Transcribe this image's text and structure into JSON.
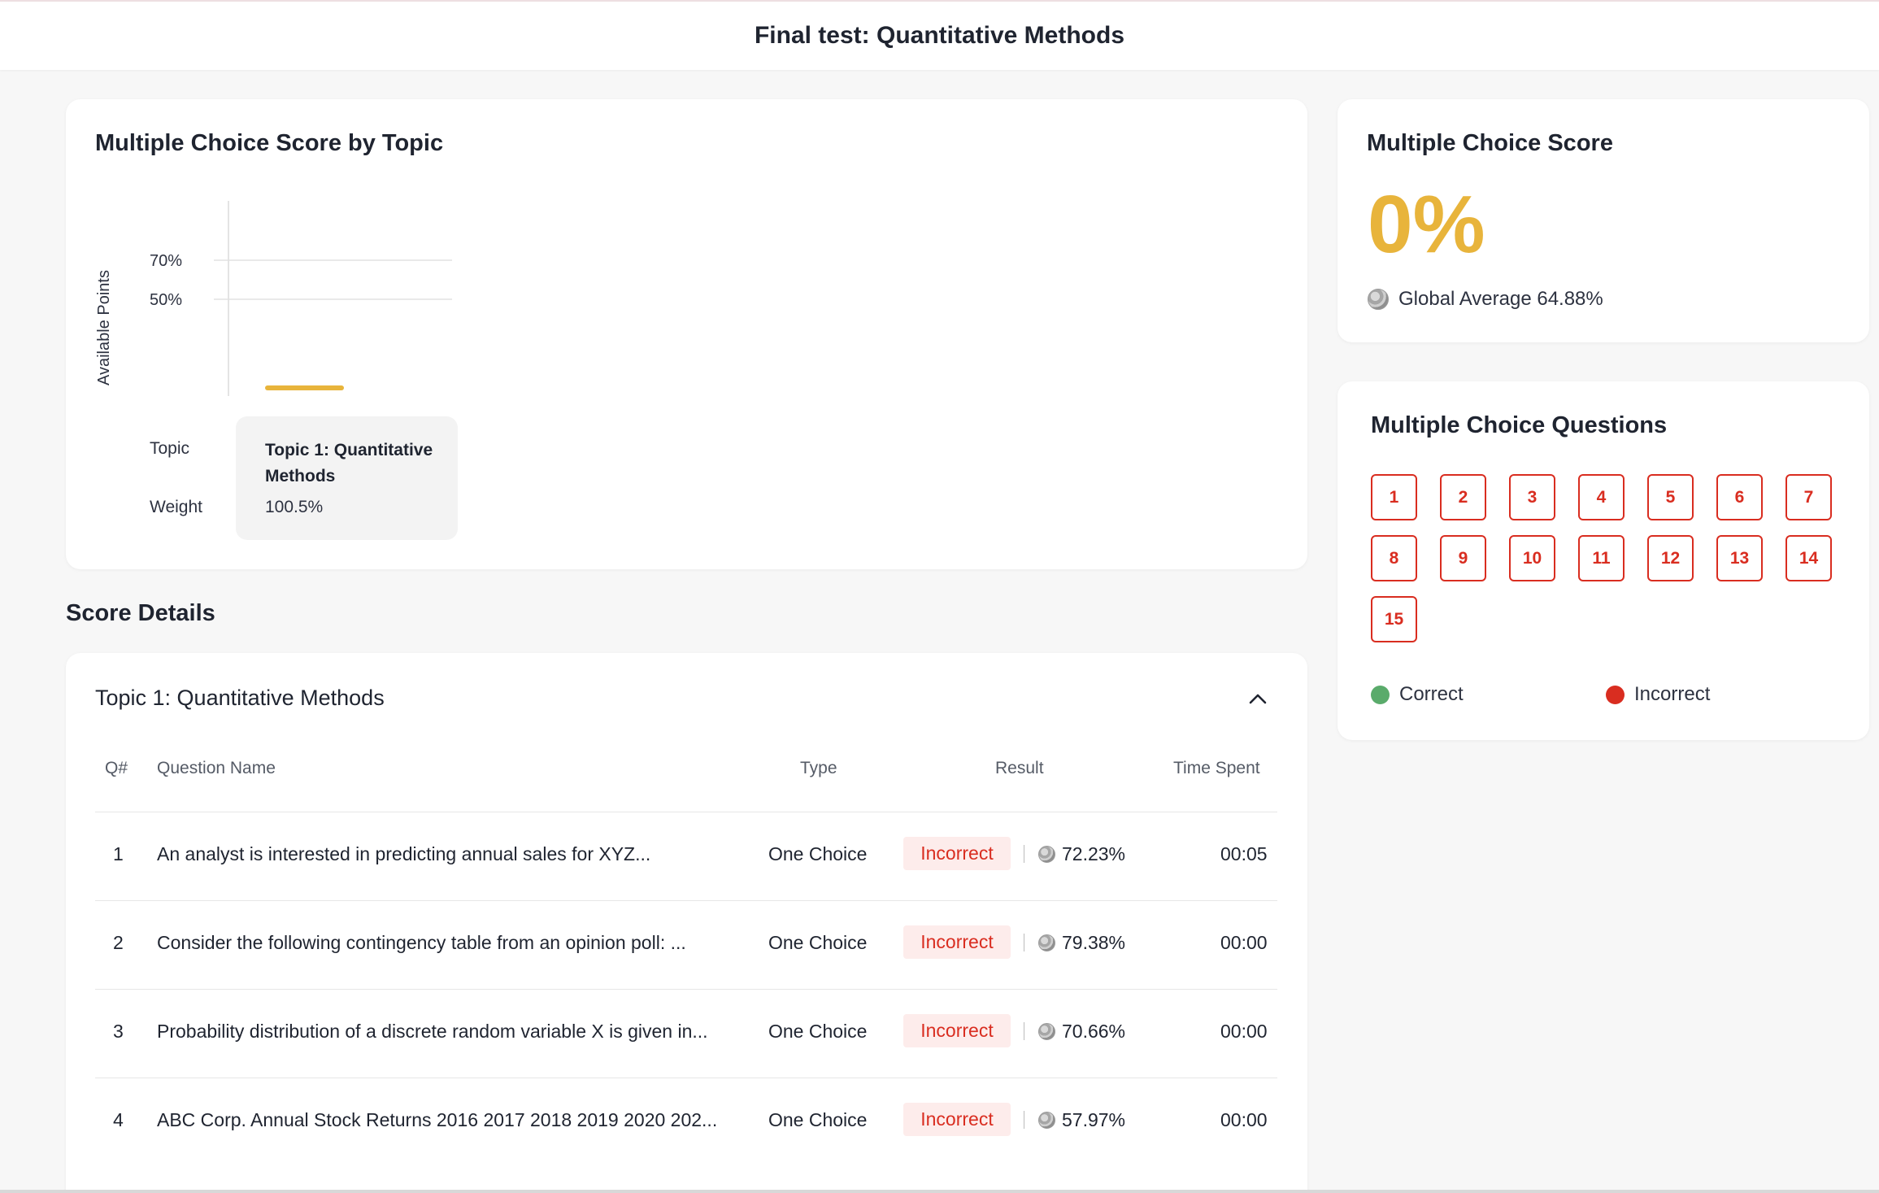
{
  "header": {
    "title": "Final test: Quantitative Methods"
  },
  "chart_card": {
    "title": "Multiple Choice Score by Topic",
    "topic_row_label": "Topic",
    "weight_row_label": "Weight",
    "topic_name": "Topic 1: Quantitative Methods",
    "topic_weight": "100.5%"
  },
  "chart_data": {
    "type": "bar",
    "ylabel": "Available Points",
    "yticks": [
      "70%",
      "50%"
    ],
    "categories": [
      "Topic 1: Quantitative Methods"
    ],
    "values": [
      0
    ],
    "bar_color": "#e8b43b"
  },
  "score_card": {
    "title": "Multiple Choice Score",
    "score": "0%",
    "global_average": "Global Average 64.88%",
    "score_color": "#e8b43b"
  },
  "questions_card": {
    "title": "Multiple Choice Questions",
    "questions": [
      "1",
      "2",
      "3",
      "4",
      "5",
      "6",
      "7",
      "8",
      "9",
      "10",
      "11",
      "12",
      "13",
      "14",
      "15"
    ],
    "legend_correct": "Correct",
    "legend_incorrect": "Incorrect",
    "correct_color": "#5aab6b",
    "incorrect_color": "#d92d20"
  },
  "details": {
    "section_title": "Score Details",
    "topic_title": "Topic 1: Quantitative Methods",
    "headers": {
      "qnum": "Q#",
      "name": "Question Name",
      "type": "Type",
      "result": "Result",
      "time": "Time Spent"
    },
    "rows": [
      {
        "num": "1",
        "name": "An analyst is interested in predicting annual sales for XYZ...",
        "type": "One Choice",
        "result": "Incorrect",
        "global": "72.23%",
        "time": "00:05"
      },
      {
        "num": "2",
        "name": "Consider the following contingency table from an opinion poll:  ...",
        "type": "One Choice",
        "result": "Incorrect",
        "global": "79.38%",
        "time": "00:00"
      },
      {
        "num": "3",
        "name": "Probability distribution of a discrete random variable X is given in...",
        "type": "One Choice",
        "result": "Incorrect",
        "global": "70.66%",
        "time": "00:00"
      },
      {
        "num": "4",
        "name": "ABC Corp. Annual Stock Returns 2016 2017 2018 2019 2020 202...",
        "type": "One Choice",
        "result": "Incorrect",
        "global": "57.97%",
        "time": "00:00"
      }
    ]
  }
}
